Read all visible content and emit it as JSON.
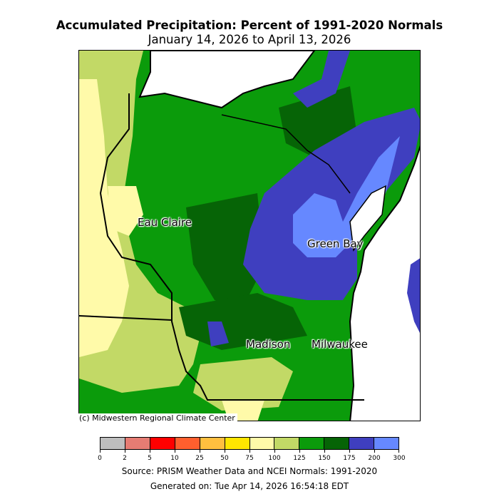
{
  "title": "Accumulated Precipitation: Percent of 1991-2020 Normals",
  "subtitle": "January 14, 2026 to April 13, 2026",
  "credit": "(c) Midwestern Regional Climate Center",
  "source": "Source: PRISM Weather Data and NCEI Normals: 1991-2020",
  "generated": "Generated on: Tue Apr 14, 2026 16:54:18 EDT",
  "cities": [
    {
      "name": "Eau Claire"
    },
    {
      "name": "Green Bay"
    },
    {
      "name": "Madison"
    },
    {
      "name": "Milwaukee"
    }
  ],
  "legend": {
    "ticks": [
      "0",
      "2",
      "5",
      "10",
      "25",
      "50",
      "75",
      "100",
      "125",
      "150",
      "175",
      "200",
      "300"
    ],
    "colors": [
      "#bebebe",
      "#e67c73",
      "#ff0000",
      "#ff5f2e",
      "#ffbf3f",
      "#ffe600",
      "#fffaa9",
      "#c2d966",
      "#0b9b0b",
      "#066406",
      "#3f3fbf",
      "#6688ff"
    ]
  },
  "colors": {
    "lake": "#ffffff",
    "border": "#000000"
  }
}
